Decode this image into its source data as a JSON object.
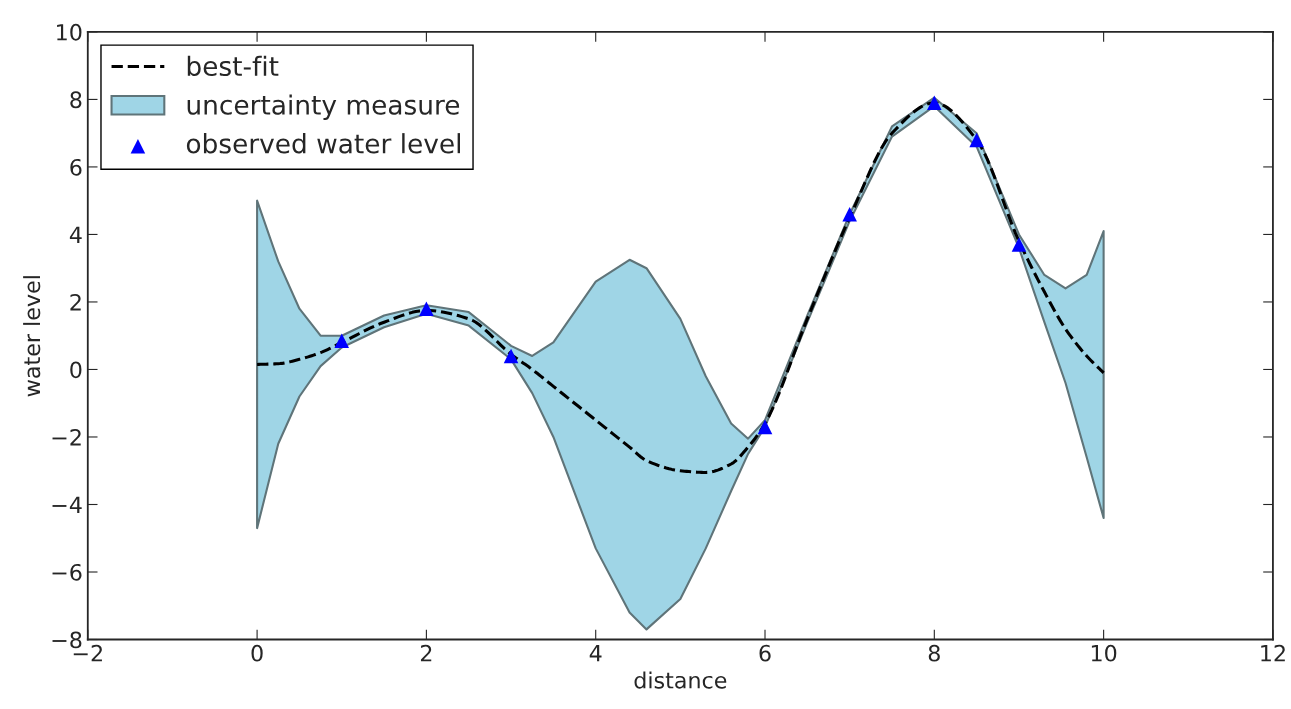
{
  "chart_data": {
    "type": "line",
    "xlabel": "distance",
    "ylabel": "water level",
    "xlim": [
      -2,
      12
    ],
    "xticks": [
      -2,
      0,
      2,
      4,
      6,
      8,
      10,
      12
    ],
    "ylim": [
      -8,
      10
    ],
    "yticks": [
      -8,
      -6,
      -4,
      -2,
      0,
      2,
      4,
      6,
      8,
      10
    ],
    "grid": false,
    "legend": "top left",
    "series": [
      {
        "name": "best-fit",
        "color": "#000000",
        "line_style": "dashed",
        "marker": "none",
        "x": [
          0,
          0.25,
          0.5,
          0.75,
          1,
          1.5,
          2,
          2.5,
          3,
          3.25,
          3.5,
          4,
          4.4,
          4.6,
          5,
          5.3,
          5.6,
          5.8,
          6,
          6.5,
          7,
          7.5,
          8,
          8.5,
          9,
          9.3,
          9.55,
          9.8,
          10
        ],
        "values": [
          0.15,
          0.17,
          0.3,
          0.5,
          0.8,
          1.4,
          1.75,
          1.5,
          0.45,
          0.0,
          -0.5,
          -1.5,
          -2.3,
          -2.7,
          -3.0,
          -3.05,
          -2.8,
          -2.3,
          -1.6,
          1.5,
          4.5,
          7.0,
          7.9,
          6.8,
          3.8,
          2.3,
          1.2,
          0.4,
          -0.1
        ],
        "lower": [
          -4.7,
          -2.2,
          -0.8,
          0.1,
          0.65,
          1.25,
          1.65,
          1.3,
          0.3,
          -0.7,
          -2.0,
          -5.3,
          -7.2,
          -7.7,
          -6.8,
          -5.3,
          -3.6,
          -2.5,
          -1.7,
          1.4,
          4.4,
          6.9,
          7.8,
          6.6,
          3.6,
          1.4,
          -0.4,
          -2.6,
          -4.4
        ],
        "upper": [
          5.0,
          3.2,
          1.8,
          1.0,
          1.0,
          1.6,
          1.9,
          1.7,
          0.7,
          0.4,
          0.8,
          2.6,
          3.25,
          3.0,
          1.5,
          -0.2,
          -1.6,
          -2.05,
          -1.5,
          1.6,
          4.6,
          7.2,
          8.05,
          7.0,
          4.0,
          2.8,
          2.4,
          2.8,
          4.1
        ]
      },
      {
        "name": "uncertainty measure",
        "type": "area",
        "color": "#9fd5e6"
      },
      {
        "name": "observed water level",
        "type": "scatter",
        "color": "#0000ff",
        "marker": "triangle",
        "x": [
          1,
          2,
          3,
          6,
          7,
          8,
          8.5,
          9
        ],
        "values": [
          0.85,
          1.8,
          0.4,
          -1.7,
          4.6,
          7.9,
          6.8,
          3.7
        ]
      }
    ]
  }
}
